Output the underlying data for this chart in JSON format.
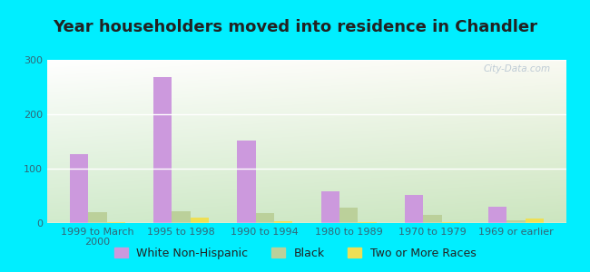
{
  "title": "Year householders moved into residence in Chandler",
  "categories": [
    "1999 to March\n2000",
    "1995 to 1998",
    "1990 to 1994",
    "1980 to 1989",
    "1970 to 1979",
    "1969 or earlier"
  ],
  "series": {
    "White Non-Hispanic": [
      127,
      268,
      152,
      58,
      52,
      30
    ],
    "Black": [
      20,
      22,
      18,
      28,
      15,
      5
    ],
    "Two or More Races": [
      2,
      10,
      3,
      2,
      2,
      9
    ]
  },
  "colors": {
    "White Non-Hispanic": "#cc99dd",
    "Black": "#bbd09a",
    "Two or More Races": "#eedf55"
  },
  "ylim": [
    0,
    300
  ],
  "yticks": [
    0,
    100,
    200,
    300
  ],
  "background_outer": "#00eeff",
  "grid_color": "#e0e8d8",
  "watermark": "City-Data.com",
  "bar_width": 0.22,
  "legend_fontsize": 9,
  "title_fontsize": 13,
  "title_color": "#222222",
  "tick_color": "#336677",
  "tick_fontsize": 8
}
